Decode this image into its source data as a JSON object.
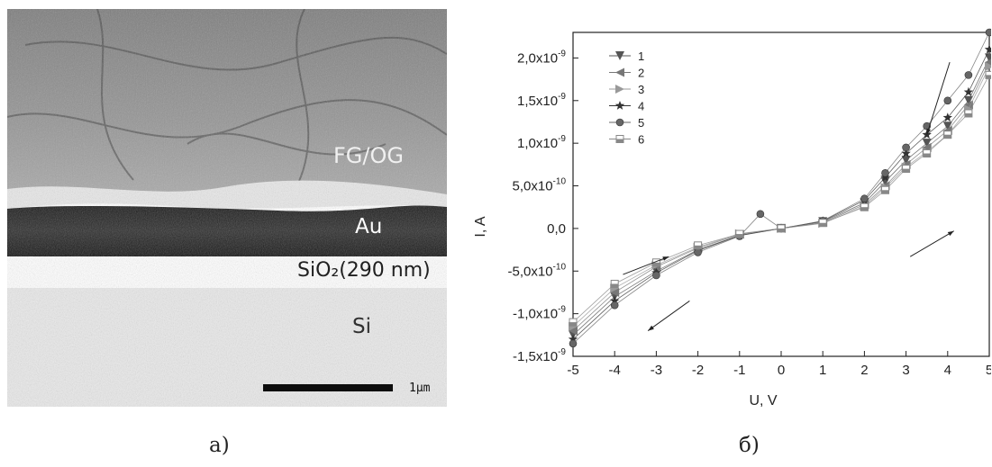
{
  "figure": {
    "caption_a": "a)",
    "caption_b": "б)"
  },
  "sem_image": {
    "labels": {
      "fg_og": "FG/OG",
      "au": "Au",
      "sio2": "SiO₂(290 nm)",
      "si": "Si"
    },
    "scale_bar_label": "1μm"
  },
  "chart_data": {
    "type": "scatter",
    "xlabel": "U, V",
    "ylabel": "I, A",
    "xlim": [
      -5,
      5
    ],
    "ylim": [
      -1.5e-09,
      2.3e-09
    ],
    "x_ticks": [
      -5,
      -4,
      -3,
      -2,
      -1,
      0,
      1,
      2,
      3,
      4,
      5
    ],
    "x_tick_labels": [
      "-5",
      "-4",
      "-3",
      "-2",
      "-1",
      "0",
      "1",
      "2",
      "3",
      "4",
      "5"
    ],
    "y_ticks": [
      -1.5e-09,
      -1e-09,
      -5e-10,
      0,
      5e-10,
      1e-09,
      1.5e-09,
      2e-09
    ],
    "y_tick_labels": [
      {
        "base": "-1,5x10",
        "exp": "-9"
      },
      {
        "base": "-1,0x10",
        "exp": "-9"
      },
      {
        "base": "-5,0x10",
        "exp": "-10"
      },
      {
        "base": "0,0",
        "exp": ""
      },
      {
        "base": "5,0x10",
        "exp": "-10"
      },
      {
        "base": "1,0x10",
        "exp": "-9"
      },
      {
        "base": "1,5x10",
        "exp": "-9"
      },
      {
        "base": "2,0x10",
        "exp": "-9"
      }
    ],
    "legend_position": "top-left",
    "series": [
      {
        "name": "1",
        "marker": "triangle-down",
        "color": "#555555",
        "x": [
          -5,
          -4,
          -3,
          -2,
          -1,
          0,
          1,
          2,
          2.5,
          3,
          3.5,
          4,
          4.5,
          5
        ],
        "y": [
          -1.25e-09,
          -8e-10,
          -5e-10,
          -2.5e-10,
          -8e-11,
          0,
          8e-11,
          3e-10,
          5.5e-10,
          8e-10,
          1e-09,
          1.2e-09,
          1.5e-09,
          2e-09
        ]
      },
      {
        "name": "2",
        "marker": "triangle-left",
        "color": "#777777",
        "x": [
          -5,
          -4,
          -3,
          -2,
          -1,
          0,
          1,
          2,
          2.5,
          3,
          3.5,
          4,
          4.5,
          5
        ],
        "y": [
          -1.2e-09,
          -7.5e-10,
          -4.5e-10,
          -2.3e-10,
          -7e-11,
          0,
          7e-11,
          2.8e-10,
          5e-10,
          7.5e-10,
          9.5e-10,
          1.15e-09,
          1.45e-09,
          1.95e-09
        ]
      },
      {
        "name": "3",
        "marker": "triangle-right",
        "color": "#999999",
        "x": [
          -5,
          -4,
          -3,
          -2,
          -1,
          0,
          1,
          2,
          2.5,
          3,
          3.5,
          4,
          4.5,
          5
        ],
        "y": [
          -1.15e-09,
          -7e-10,
          -4.3e-10,
          -2.2e-10,
          -6e-11,
          0,
          6e-11,
          2.6e-10,
          4.8e-10,
          7.2e-10,
          9e-10,
          1.1e-09,
          1.4e-09,
          1.9e-09
        ]
      },
      {
        "name": "4",
        "marker": "star",
        "color": "#333333",
        "x": [
          -5,
          -4,
          -3,
          -2,
          -1,
          0,
          1,
          2,
          2.5,
          3,
          3.5,
          4,
          4.5,
          5
        ],
        "y": [
          -1.3e-09,
          -8.5e-10,
          -5.2e-10,
          -2.6e-10,
          -8.5e-11,
          0,
          8.5e-11,
          3.3e-10,
          6e-10,
          8.8e-10,
          1.1e-09,
          1.3e-09,
          1.6e-09,
          2.1e-09
        ]
      },
      {
        "name": "5",
        "marker": "circle",
        "color": "#666666",
        "x": [
          -5,
          -4,
          -3,
          -2,
          -1,
          -0.5,
          0,
          1,
          2,
          2.5,
          3,
          3.5,
          4,
          4.5,
          5
        ],
        "y": [
          -1.35e-09,
          -9e-10,
          -5.5e-10,
          -2.8e-10,
          -9e-11,
          1.7e-10,
          0,
          9e-11,
          3.5e-10,
          6.5e-10,
          9.5e-10,
          1.2e-09,
          1.5e-09,
          1.8e-09,
          2.3e-09
        ]
      },
      {
        "name": "6",
        "marker": "square-half",
        "color": "#888888",
        "x": [
          -5,
          -4,
          -3,
          -2,
          -1,
          0,
          1,
          2,
          2.5,
          3,
          3.5,
          4,
          4.5,
          5
        ],
        "y": [
          -1.1e-09,
          -6.5e-10,
          -4e-10,
          -2e-10,
          -6.5e-11,
          0,
          6.5e-11,
          2.5e-10,
          4.5e-10,
          7e-10,
          8.8e-10,
          1.1e-09,
          1.35e-09,
          1.8e-09
        ]
      }
    ],
    "arrows": [
      {
        "from": [
          4.05,
          1.95e-09
        ],
        "to": [
          3.5,
          1.1e-09
        ]
      },
      {
        "from": [
          3.1,
          -3.3e-10
        ],
        "to": [
          4.15,
          -3e-11
        ]
      },
      {
        "from": [
          -3.8,
          -5.4e-10
        ],
        "to": [
          -2.7,
          -3.3e-10
        ]
      },
      {
        "from": [
          -2.2,
          -8.5e-10
        ],
        "to": [
          -3.2,
          -1.2e-09
        ]
      }
    ]
  }
}
